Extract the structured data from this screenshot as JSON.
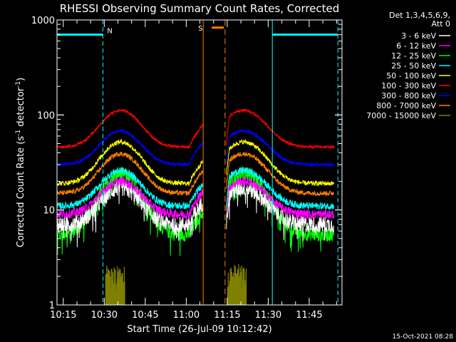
{
  "chart_data": {
    "type": "line",
    "title": "RHESSI Observing Summary Count Rates, Corrected",
    "xlabel": "Start Time (26-Jul-09 10:12:42)",
    "ylabel_main": "Corrected Count Rate (s",
    "ylabel_sup1": "-1",
    "ylabel_mid": " detector",
    "ylabel_sup2": "-1",
    "ylabel_end": ")",
    "yscale": "log",
    "ylim": [
      1,
      1000
    ],
    "xlim_min": [
      12.7,
      117.0
    ],
    "x_ticks": [
      {
        "m": 15,
        "label": "10:15"
      },
      {
        "m": 30,
        "label": "10:30"
      },
      {
        "m": 45,
        "label": "10:45"
      },
      {
        "m": 60,
        "label": "11:00"
      },
      {
        "m": 75,
        "label": "11:15"
      },
      {
        "m": 90,
        "label": "11:30"
      },
      {
        "m": 105,
        "label": "11:45"
      }
    ],
    "y_ticks": [
      {
        "v": 1,
        "label": "1"
      },
      {
        "v": 10,
        "label": "10"
      },
      {
        "v": 100,
        "label": "100"
      },
      {
        "v": 1000,
        "label": "1000"
      }
    ],
    "legend_header": [
      "Det 1,3,4,5,6,9,",
      "Att 0"
    ],
    "legend_position": "right",
    "series": [
      {
        "name": "3 - 6 keV",
        "color": "#ffffff",
        "base": 7,
        "peak": 17,
        "noise": 0.35,
        "dropouts": true
      },
      {
        "name": "6 - 12 keV",
        "color": "#ff00ff",
        "base": 9,
        "peak": 20,
        "noise": 0.2,
        "dropouts": false
      },
      {
        "name": "12 - 25 keV",
        "color": "#00ff00",
        "base": 5.5,
        "peak": 24,
        "noise": 0.3,
        "dropouts": true
      },
      {
        "name": "25 - 50 keV",
        "color": "#00ffff",
        "base": 11,
        "peak": 26,
        "noise": 0.15,
        "dropouts": false
      },
      {
        "name": "50 - 100 keV",
        "color": "#ffff00",
        "base": 19,
        "peak": 52,
        "noise": 0.1,
        "dropouts": false
      },
      {
        "name": "100 - 300 keV",
        "color": "#ff0000",
        "base": 46,
        "peak": 112,
        "noise": 0.06,
        "dropouts": false
      },
      {
        "name": "300 - 800 keV",
        "color": "#0000ff",
        "base": 30,
        "peak": 68,
        "noise": 0.07,
        "dropouts": false
      },
      {
        "name": "800 - 7000 keV",
        "color": "#ff8000",
        "base": 15,
        "peak": 39,
        "noise": 0.1,
        "dropouts": false
      },
      {
        "name": "7000 - 15000 keV",
        "color": "#808000",
        "base": 1,
        "peak": 1,
        "noise": 0,
        "dropouts": false
      }
    ],
    "segments": [
      {
        "start": 12.7,
        "end": 66.2,
        "peak_at": 36.0,
        "width": 9.0
      },
      {
        "start": 74.7,
        "end": 114.0,
        "peak_at": 81.0,
        "width": 10.0
      }
    ],
    "olive_bursts": [
      {
        "start": 30.5,
        "end": 37.5,
        "top": 2.6
      },
      {
        "start": 75.0,
        "end": 82.0,
        "top": 2.7
      }
    ],
    "night_markers": [
      {
        "kind": "sunset",
        "m": 29.5,
        "color": "#00ffff"
      },
      {
        "kind": "sunrise",
        "m": 91.5,
        "color": "#00ffff"
      },
      {
        "kind": "night_end",
        "m": 115.5,
        "color": "#00ffff"
      }
    ],
    "night_bars": [
      {
        "start": 12.7,
        "end": 29.5,
        "y": 700,
        "color": "#00ffff",
        "label": "N"
      },
      {
        "start": 91.5,
        "end": 115.5,
        "y": 700,
        "color": "#00ffff",
        "label": ""
      }
    ],
    "saa_bar": {
      "start": 66.2,
      "end": 73.5,
      "y": 830,
      "color": "#ff8000",
      "label": "S"
    },
    "saa_lines": [
      {
        "m": 66.2,
        "dashed": false
      },
      {
        "m": 74.2,
        "dashed": true
      }
    ],
    "timestamp": "15-Oct-2021 08:28"
  }
}
